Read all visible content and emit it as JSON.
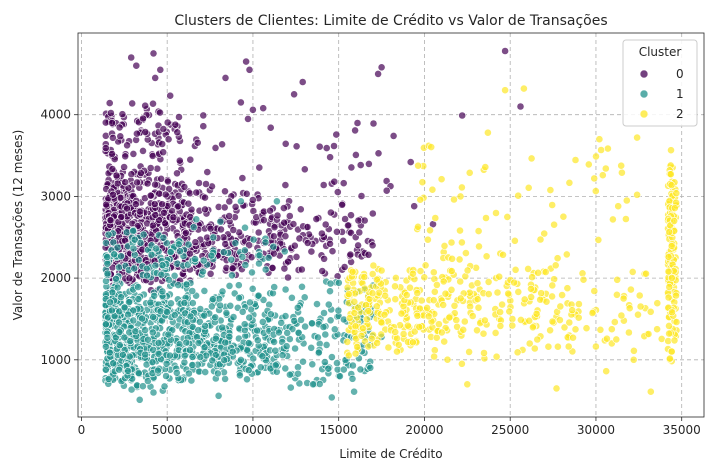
{
  "chart_data": {
    "type": "scatter",
    "title": "Clusters de Clientes: Limite de Crédito vs Valor de Transações",
    "xlabel": "Limite de Crédito",
    "ylabel": "Valor de Transações (12 meses)",
    "xlim": [
      -200,
      36300
    ],
    "ylim": [
      300,
      5000
    ],
    "xticks": [
      0,
      5000,
      10000,
      15000,
      20000,
      25000,
      30000,
      35000
    ],
    "yticks": [
      1000,
      2000,
      3000,
      4000
    ],
    "grid": true,
    "legend": {
      "title": "Cluster",
      "location": "top-right"
    },
    "series": [
      {
        "name": "0",
        "color": "#440154",
        "regions": [
          {
            "xmin": 1400,
            "xmax": 6000,
            "ymin": 1800,
            "ymax": 3400,
            "count": 560
          },
          {
            "xmin": 1400,
            "xmax": 4500,
            "ymin": 3200,
            "ymax": 4300,
            "count": 70
          },
          {
            "xmin": 6000,
            "xmax": 11000,
            "ymin": 1850,
            "ymax": 3200,
            "count": 200
          },
          {
            "xmin": 11000,
            "xmax": 17000,
            "ymin": 1950,
            "ymax": 3000,
            "count": 120
          },
          {
            "xmin": 4500,
            "xmax": 11000,
            "ymin": 3200,
            "ymax": 4300,
            "count": 35
          },
          {
            "xmin": 11000,
            "xmax": 18500,
            "ymin": 2900,
            "ymax": 4000,
            "count": 25
          }
        ],
        "points": [
          [
            2900,
            4700
          ],
          [
            3200,
            4600
          ],
          [
            4200,
            4750
          ],
          [
            4600,
            4550
          ],
          [
            4300,
            4450
          ],
          [
            9600,
            4650
          ],
          [
            9800,
            4550
          ],
          [
            8400,
            4450
          ],
          [
            12900,
            4400
          ],
          [
            17500,
            4580
          ],
          [
            17300,
            4500
          ],
          [
            24700,
            4780
          ],
          [
            25600,
            4100
          ],
          [
            22200,
            3990
          ],
          [
            10600,
            4080
          ],
          [
            10000,
            4060
          ],
          [
            12400,
            4250
          ],
          [
            9300,
            4150
          ],
          [
            14500,
            3480
          ],
          [
            18200,
            3740
          ],
          [
            19200,
            3420
          ],
          [
            17800,
            3070
          ],
          [
            20500,
            2660
          ],
          [
            19400,
            2880
          ],
          [
            16200,
            2560
          ]
        ]
      },
      {
        "name": "1",
        "color": "#21918c",
        "regions": [
          {
            "xmin": 1400,
            "xmax": 6000,
            "ymin": 600,
            "ymax": 2000,
            "count": 520
          },
          {
            "xmin": 6000,
            "xmax": 11000,
            "ymin": 650,
            "ymax": 1950,
            "count": 300
          },
          {
            "xmin": 11000,
            "xmax": 17000,
            "ymin": 600,
            "ymax": 2050,
            "count": 170
          },
          {
            "xmin": 1400,
            "xmax": 6000,
            "ymin": 1900,
            "ymax": 2600,
            "count": 90
          },
          {
            "xmin": 6000,
            "xmax": 12000,
            "ymin": 1900,
            "ymax": 2700,
            "count": 40
          }
        ],
        "points": [
          [
            3400,
            510
          ],
          [
            4200,
            600
          ],
          [
            8000,
            560
          ],
          [
            14600,
            540
          ],
          [
            14900,
            960
          ],
          [
            15300,
            880
          ],
          [
            16500,
            1860
          ],
          [
            17000,
            1910
          ],
          [
            17500,
            1280
          ],
          [
            9300,
            2940
          ],
          [
            11400,
            2940
          ],
          [
            6700,
            2720
          ],
          [
            8100,
            2690
          ],
          [
            15900,
            610
          ],
          [
            13500,
            700
          ]
        ]
      },
      {
        "name": "2",
        "color": "#fde725",
        "regions": [
          {
            "xmin": 15500,
            "xmax": 21000,
            "ymin": 1000,
            "ymax": 2200,
            "count": 220
          },
          {
            "xmin": 21000,
            "xmax": 28000,
            "ymin": 900,
            "ymax": 2500,
            "count": 160
          },
          {
            "xmin": 28000,
            "xmax": 34000,
            "ymin": 900,
            "ymax": 2200,
            "count": 60
          },
          {
            "xmin": 19500,
            "xmax": 33000,
            "ymin": 2200,
            "ymax": 3800,
            "count": 45
          },
          {
            "xmin": 34200,
            "xmax": 34700,
            "ymin": 700,
            "ymax": 3700,
            "count": 140
          }
        ],
        "points": [
          [
            24700,
            4300
          ],
          [
            25800,
            4320
          ],
          [
            23700,
            3780
          ],
          [
            32400,
            3720
          ],
          [
            30200,
            3700
          ],
          [
            30000,
            3490
          ],
          [
            30400,
            3260
          ],
          [
            29900,
            3220
          ],
          [
            31300,
            2880
          ],
          [
            31800,
            2950
          ],
          [
            32400,
            3020
          ],
          [
            28300,
            2290
          ],
          [
            21000,
            3210
          ],
          [
            22100,
            3000
          ],
          [
            20200,
            2470
          ],
          [
            22500,
            700
          ],
          [
            27700,
            650
          ],
          [
            33200,
            610
          ],
          [
            30600,
            860
          ],
          [
            32200,
            1000
          ]
        ]
      }
    ]
  }
}
